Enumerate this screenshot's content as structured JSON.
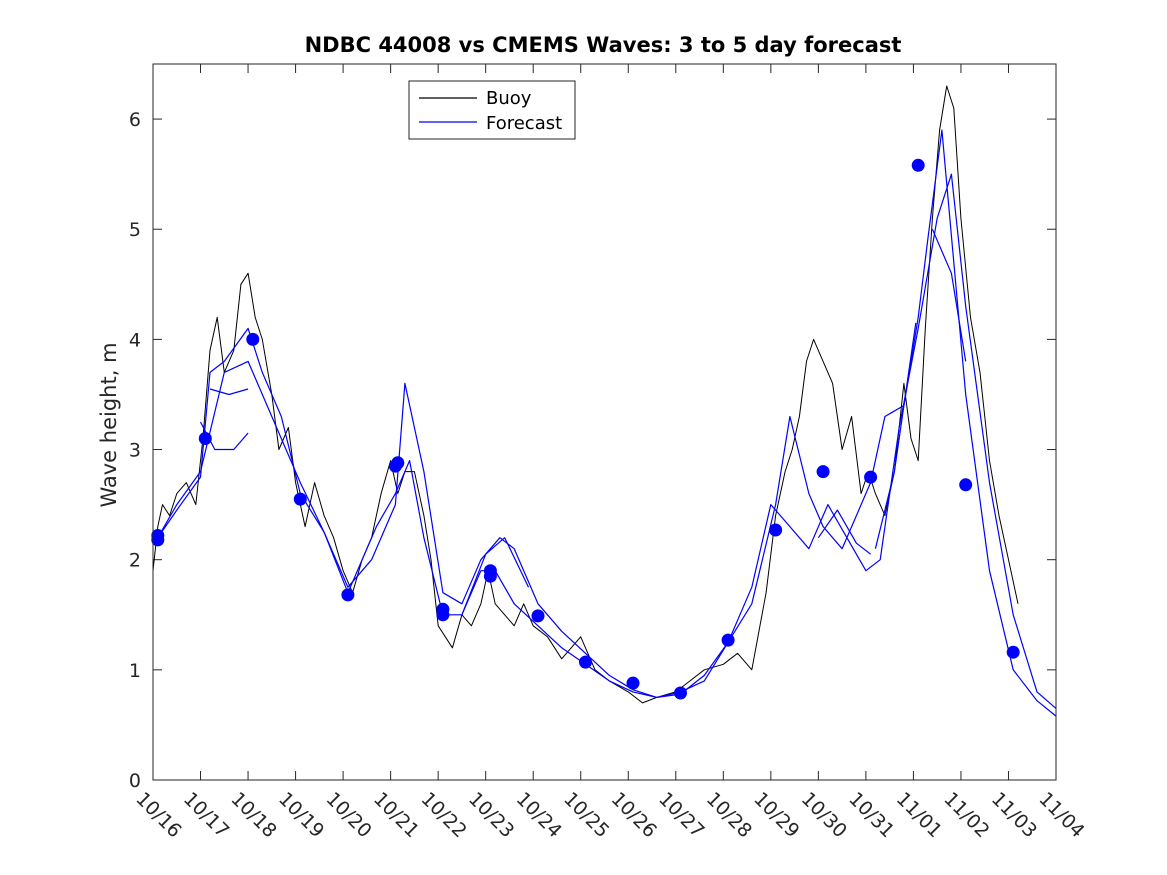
{
  "chart_data": {
    "type": "line",
    "title": "NDBC 44008 vs CMEMS Waves: 3 to 5 day forecast",
    "xlabel": "",
    "ylabel": "Wave height, m",
    "xlim_days": [
      0,
      19
    ],
    "ylim": [
      0,
      6.5
    ],
    "yticks": [
      0,
      1,
      2,
      3,
      4,
      5,
      6
    ],
    "xtick_labels": [
      "10/16",
      "10/17",
      "10/18",
      "10/19",
      "10/20",
      "10/21",
      "10/22",
      "10/23",
      "10/24",
      "10/25",
      "10/26",
      "10/27",
      "10/28",
      "10/29",
      "10/30",
      "10/31",
      "11/01",
      "11/02",
      "11/03",
      "11/04"
    ],
    "legend": {
      "location": "top-center",
      "entries": [
        {
          "name": "Buoy",
          "color": "#000000"
        },
        {
          "name": "Forecast",
          "color": "#0000ff"
        }
      ]
    },
    "colors": {
      "buoy": "#000000",
      "forecast": "#0000ff",
      "markers": "#0000ff"
    },
    "series": [
      {
        "name": "Buoy",
        "x": [
          0,
          0.1,
          0.2,
          0.35,
          0.5,
          0.7,
          0.9,
          1.05,
          1.2,
          1.35,
          1.5,
          1.7,
          1.85,
          2.0,
          2.15,
          2.3,
          2.5,
          2.65,
          2.85,
          3.0,
          3.2,
          3.4,
          3.6,
          3.8,
          4.0,
          4.2,
          4.4,
          4.6,
          4.8,
          5.0,
          5.15,
          5.3,
          5.5,
          5.7,
          5.85,
          6.0,
          6.15,
          6.3,
          6.5,
          6.7,
          6.9,
          7.05,
          7.2,
          7.4,
          7.6,
          7.8,
          8.0,
          8.3,
          8.6,
          9.0,
          9.3,
          9.6,
          10.0,
          10.3,
          10.6,
          11.0,
          11.3,
          11.6,
          12.0,
          12.3,
          12.6,
          12.9,
          13.1,
          13.3,
          13.45,
          13.6,
          13.75,
          13.9,
          14.1,
          14.3,
          14.5,
          14.7,
          14.9,
          15.05,
          15.2,
          15.4,
          15.6,
          15.8,
          15.95,
          16.1,
          16.25,
          16.4,
          16.55,
          16.7,
          16.85,
          17.0,
          17.2,
          17.4,
          17.6,
          17.8,
          18.0,
          18.2
        ],
        "y": [
          1.9,
          2.3,
          2.5,
          2.4,
          2.6,
          2.7,
          2.5,
          3.1,
          3.9,
          4.2,
          3.7,
          3.9,
          4.5,
          4.6,
          4.2,
          4.0,
          3.5,
          3.0,
          3.2,
          2.7,
          2.3,
          2.7,
          2.4,
          2.2,
          1.9,
          1.7,
          2.0,
          2.2,
          2.6,
          2.9,
          2.6,
          2.8,
          2.8,
          2.4,
          2.0,
          1.4,
          1.3,
          1.2,
          1.5,
          1.4,
          1.6,
          1.9,
          1.6,
          1.5,
          1.4,
          1.6,
          1.4,
          1.3,
          1.1,
          1.3,
          1.0,
          0.9,
          0.8,
          0.7,
          0.75,
          0.8,
          0.9,
          1.0,
          1.05,
          1.15,
          1.0,
          1.7,
          2.4,
          2.8,
          3.0,
          3.3,
          3.8,
          4.0,
          3.8,
          3.6,
          3.0,
          3.3,
          2.6,
          2.8,
          2.6,
          2.4,
          2.8,
          3.6,
          3.1,
          2.9,
          4.1,
          5.1,
          5.9,
          6.3,
          6.1,
          5.1,
          4.2,
          3.7,
          2.9,
          2.4,
          2.0,
          1.6
        ]
      },
      {
        "name": "Forecast",
        "segments": [
          {
            "x": [
              0.1,
              0.5,
              1.0,
              1.2,
              1.5,
              2.0,
              2.3,
              2.7,
              3.1,
              3.6,
              4.1,
              4.3,
              4.7,
              5.1,
              5.4,
              5.7,
              6.1,
              6.5,
              6.9,
              7.2,
              7.6,
              8.1,
              8.6,
              9.1,
              9.6,
              10.1,
              10.6,
              11.1,
              11.6,
              12.1,
              12.6,
              13.1,
              13.4,
              13.8,
              14.1,
              14.5,
              14.8,
              15.1,
              15.4,
              15.8,
              16.1,
              16.3,
              16.6,
              17.1,
              17.6,
              18.1,
              18.6,
              19.0
            ],
            "y": [
              2.2,
              2.45,
              2.75,
              3.7,
              3.8,
              4.1,
              3.7,
              3.3,
              2.6,
              2.25,
              1.7,
              1.9,
              2.3,
              2.6,
              2.9,
              2.2,
              1.5,
              1.5,
              1.9,
              1.9,
              1.6,
              1.4,
              1.2,
              1.05,
              0.9,
              0.8,
              0.75,
              0.8,
              0.9,
              1.25,
              1.6,
              2.5,
              3.3,
              2.6,
              2.3,
              2.1,
              2.4,
              2.7,
              3.3,
              3.4,
              4.2,
              4.9,
              5.9,
              3.5,
              1.9,
              1.0,
              0.72,
              0.58
            ]
          },
          {
            "x": [
              0.1,
              0.5,
              1.0,
              1.5,
              2.0,
              2.5,
              3.1,
              3.6,
              4.1,
              4.6,
              5.1,
              5.3,
              5.7,
              6.1,
              6.5,
              6.9,
              7.3,
              7.6,
              8.1,
              8.6,
              9.1,
              9.6,
              10.1,
              10.6,
              11.1,
              11.6,
              12.1,
              12.6,
              13.0,
              13.4,
              13.8,
              14.2,
              14.6,
              15.0,
              15.3,
              15.7,
              16.1,
              16.5,
              16.8,
              17.1,
              17.6,
              18.1,
              18.6,
              19.0
            ],
            "y": [
              2.2,
              2.5,
              2.8,
              3.7,
              3.8,
              3.3,
              2.7,
              2.25,
              1.75,
              2.0,
              2.5,
              3.6,
              2.8,
              1.7,
              1.6,
              2.0,
              2.2,
              2.1,
              1.6,
              1.35,
              1.15,
              0.95,
              0.82,
              0.75,
              0.78,
              0.95,
              1.25,
              1.75,
              2.5,
              2.3,
              2.1,
              2.5,
              2.2,
              1.9,
              2.0,
              3.2,
              4.1,
              5.1,
              5.5,
              4.3,
              2.7,
              1.5,
              0.8,
              0.65
            ]
          },
          {
            "x": [
              1.0,
              1.3,
              1.7,
              2.0
            ],
            "y": [
              3.25,
              3.0,
              3.0,
              3.15
            ]
          },
          {
            "x": [
              1.2,
              1.6,
              2.0
            ],
            "y": [
              3.55,
              3.5,
              3.55
            ]
          },
          {
            "x": [
              6.5,
              7.0,
              7.4,
              7.9
            ],
            "y": [
              1.5,
              2.05,
              2.2,
              1.75
            ]
          },
          {
            "x": [
              14.0,
              14.4,
              14.8,
              15.1
            ],
            "y": [
              2.2,
              2.45,
              2.15,
              2.05
            ]
          },
          {
            "x": [
              15.2,
              15.6,
              16.05
            ],
            "y": [
              2.1,
              2.8,
              4.15
            ]
          },
          {
            "x": [
              16.4,
              16.8,
              17.1
            ],
            "y": [
              5.0,
              4.6,
              3.8
            ]
          }
        ]
      }
    ],
    "markers": {
      "x": [
        0.1,
        0.1,
        1.1,
        2.1,
        3.1,
        4.1,
        5.1,
        5.15,
        6.1,
        6.1,
        7.1,
        7.1,
        8.1,
        9.1,
        10.1,
        11.1,
        12.1,
        13.1,
        14.1,
        15.1,
        16.1,
        17.1,
        18.1
      ],
      "y": [
        2.18,
        2.22,
        3.1,
        4.0,
        2.55,
        1.68,
        2.85,
        2.88,
        1.55,
        1.5,
        1.85,
        1.9,
        1.49,
        1.07,
        0.88,
        0.79,
        1.27,
        2.27,
        2.8,
        2.75,
        5.58,
        2.68,
        1.16
      ]
    }
  }
}
